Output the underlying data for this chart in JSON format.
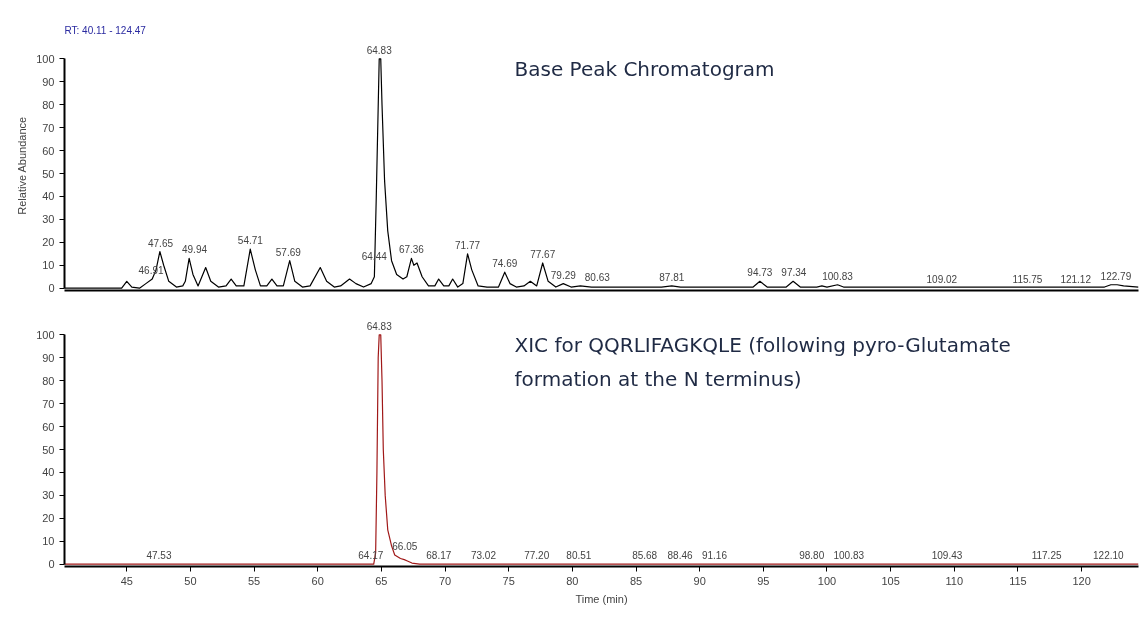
{
  "chart_data": [
    {
      "type": "line",
      "title": "Base Peak Chromatogram",
      "subtitle": "RT: 40.11 - 124.47",
      "ylabel": "Relative Abundance",
      "xlim": [
        40.11,
        124.47
      ],
      "ylim": [
        0,
        100
      ],
      "yticks": [
        0,
        10,
        20,
        30,
        40,
        50,
        60,
        70,
        80,
        90,
        100
      ],
      "tick_labels": "y",
      "grid": false,
      "x": [
        40.11,
        44.6,
        45.0,
        45.4,
        46.0,
        46.5,
        47.0,
        47.3,
        47.6,
        47.9,
        48.3,
        48.9,
        49.4,
        49.6,
        49.9,
        50.2,
        50.6,
        51.2,
        51.6,
        52.2,
        52.8,
        53.2,
        53.6,
        54.2,
        54.7,
        55.1,
        55.5,
        56.0,
        56.4,
        56.8,
        57.3,
        57.8,
        58.2,
        58.8,
        59.4,
        60.2,
        60.7,
        61.3,
        61.8,
        62.5,
        63.0,
        63.6,
        64.2,
        64.45,
        64.6,
        64.83,
        64.95,
        65.05,
        65.25,
        65.5,
        65.8,
        66.2,
        66.7,
        67.0,
        67.36,
        67.55,
        67.8,
        68.2,
        68.7,
        69.2,
        69.5,
        69.9,
        70.3,
        70.6,
        71.0,
        71.4,
        71.77,
        72.1,
        72.6,
        73.3,
        74.2,
        74.69,
        75.1,
        75.6,
        76.2,
        76.7,
        77.2,
        77.67,
        78.1,
        78.7,
        79.29,
        79.9,
        80.63,
        81.5,
        87.0,
        87.81,
        88.5,
        94.2,
        94.73,
        95.3,
        96.8,
        97.34,
        97.9,
        99.2,
        99.6,
        100.0,
        100.83,
        101.3,
        121.8,
        122.3,
        122.79,
        123.3,
        124.47
      ],
      "series": [
        {
          "color": "#000000",
          "values": [
            0,
            0,
            3,
            0.5,
            0,
            2,
            4,
            8,
            16,
            10,
            3,
            0.5,
            1,
            3,
            13,
            6,
            1,
            9,
            3,
            0.5,
            1,
            4,
            1,
            1,
            17,
            8,
            1,
            1,
            4,
            1,
            1,
            12,
            3,
            0.5,
            1,
            9,
            3,
            0.5,
            1,
            4,
            2,
            0.5,
            2,
            5,
            40,
            100,
            100,
            80,
            47,
            25,
            12,
            6,
            4,
            5,
            13,
            10,
            11,
            5,
            1,
            1,
            4,
            1,
            1,
            4,
            0.5,
            2,
            15,
            8,
            1,
            0.5,
            0.5,
            7,
            2,
            0.5,
            1,
            3,
            1,
            11,
            3,
            0.5,
            2,
            0.5,
            1,
            0.5,
            0.5,
            1,
            0.5,
            0.5,
            3,
            0.5,
            0.5,
            3,
            0.5,
            0.5,
            1,
            0.5,
            1.5,
            0.5,
            0.5,
            1.5,
            1.5,
            1,
            0.5
          ]
        }
      ],
      "annotations": [
        {
          "text": "46.91",
          "x": 46.91,
          "y": 4
        },
        {
          "text": "47.65",
          "x": 47.65,
          "y": 16
        },
        {
          "text": "49.94",
          "x": 49.94,
          "y": 13
        },
        {
          "text": "54.71",
          "x": 54.71,
          "y": 17
        },
        {
          "text": "57.69",
          "x": 57.69,
          "y": 12
        },
        {
          "text": "64.44",
          "x": 64.44,
          "y": 10
        },
        {
          "text": "64.83",
          "x": 64.83,
          "y": 100
        },
        {
          "text": "67.36",
          "x": 67.36,
          "y": 13
        },
        {
          "text": "71.77",
          "x": 71.77,
          "y": 15
        },
        {
          "text": "74.69",
          "x": 74.69,
          "y": 7
        },
        {
          "text": "77.67",
          "x": 77.67,
          "y": 11
        },
        {
          "text": "79.29",
          "x": 79.29,
          "y": 2
        },
        {
          "text": "80.63",
          "x": 80.63,
          "y": 1
        },
        {
          "text": "87.81",
          "x": 87.81,
          "y": 1
        },
        {
          "text": "94.73",
          "x": 94.73,
          "y": 3
        },
        {
          "text": "97.34",
          "x": 97.34,
          "y": 3
        },
        {
          "text": "100.83",
          "x": 100.83,
          "y": 1.5
        },
        {
          "text": "109.02",
          "x": 109.02,
          "y": 0
        },
        {
          "text": "115.75",
          "x": 115.75,
          "y": 0
        },
        {
          "text": "121.12",
          "x": 121.12,
          "y": 0
        },
        {
          "text": "122.79",
          "x": 122.79,
          "y": 1.5
        }
      ]
    },
    {
      "type": "line",
      "title": "XIC for QQRLIFAGKQLE  (following pyro-Glutamate\nformation at the N terminus)",
      "xlabel": "Time (min)",
      "xlim": [
        40.11,
        124.47
      ],
      "xticks": [
        45,
        50,
        55,
        60,
        65,
        70,
        75,
        80,
        85,
        90,
        95,
        100,
        105,
        110,
        115,
        120
      ],
      "ylim": [
        0,
        100
      ],
      "yticks": [
        0,
        10,
        20,
        30,
        40,
        50,
        60,
        70,
        80,
        90,
        100
      ],
      "grid": false,
      "x": [
        40.11,
        64.4,
        64.55,
        64.65,
        64.75,
        64.83,
        64.95,
        65.05,
        65.15,
        65.3,
        65.5,
        65.8,
        66.05,
        66.5,
        66.8,
        67.0,
        67.4,
        68.0,
        124.47
      ],
      "series": [
        {
          "color": "#a01818",
          "values": [
            0,
            0,
            5,
            40,
            90,
            100,
            100,
            80,
            50,
            30,
            15,
            8,
            4,
            2.5,
            2,
            1.5,
            0.5,
            0,
            0
          ]
        }
      ],
      "annotations": [
        {
          "text": "47.53",
          "x": 47.53,
          "y": 0
        },
        {
          "text": "64.17",
          "x": 64.17,
          "y": 0
        },
        {
          "text": "64.83",
          "x": 64.83,
          "y": 100
        },
        {
          "text": "66.05",
          "x": 66.05,
          "y": 4
        },
        {
          "text": "68.17",
          "x": 68.17,
          "y": 0
        },
        {
          "text": "73.02",
          "x": 73.02,
          "y": 0
        },
        {
          "text": "77.20",
          "x": 77.2,
          "y": 0
        },
        {
          "text": "80.51",
          "x": 80.51,
          "y": 0
        },
        {
          "text": "85.68",
          "x": 85.68,
          "y": 0
        },
        {
          "text": "88.46",
          "x": 88.46,
          "y": 0
        },
        {
          "text": "91.16",
          "x": 91.16,
          "y": 0
        },
        {
          "text": "98.80",
          "x": 98.8,
          "y": 0
        },
        {
          "text": "100.83",
          "x": 100.83,
          "y": 0
        },
        {
          "text": "109.43",
          "x": 109.43,
          "y": 0
        },
        {
          "text": "117.25",
          "x": 117.25,
          "y": 0
        },
        {
          "text": "122.10",
          "x": 122.1,
          "y": 0
        }
      ]
    }
  ]
}
